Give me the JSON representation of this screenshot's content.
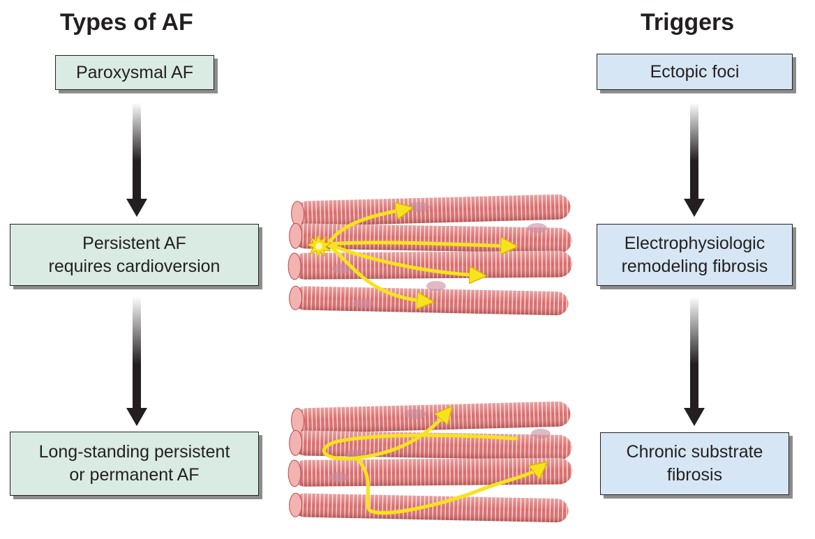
{
  "left_column": {
    "heading": "Types of AF",
    "boxes": [
      "Paroxysmal AF",
      "Persistent AF\nrequires cardioversion",
      "Long-standing persistent\nor permanent AF"
    ]
  },
  "right_column": {
    "heading": "Triggers",
    "boxes": [
      "Ectopic foci",
      "Electrophysiologic\nremodeling fibrosis",
      "Chronic substrate\nfibrosis"
    ]
  },
  "colors": {
    "left_box_fill": "#d9ebe2",
    "right_box_fill": "#d6e6f4",
    "muscle_fiber": "#d9686a",
    "conduction_arrow": "#f7e31c"
  },
  "illustrations": [
    {
      "name": "muscle-fibers-focal-firing",
      "icon": "myocardial-fiber-bundle-with-ectopic-spark"
    },
    {
      "name": "muscle-fibers-reentry",
      "icon": "myocardial-fiber-bundle-with-reentry-loop"
    }
  ]
}
